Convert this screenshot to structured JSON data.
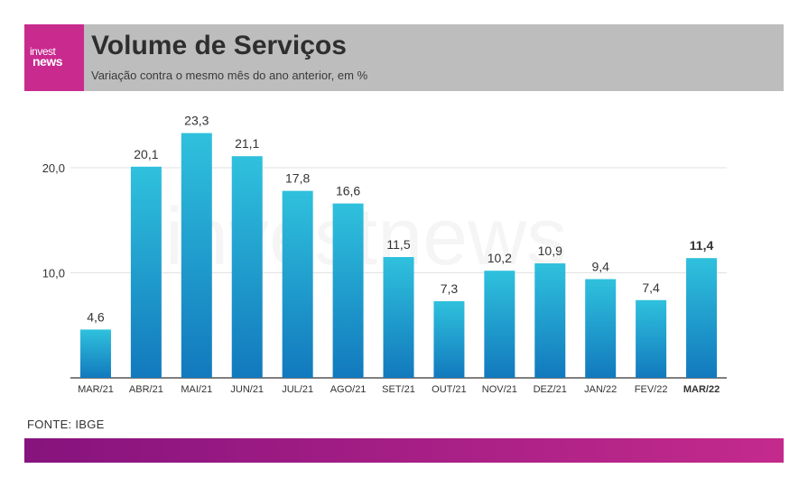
{
  "brand": {
    "logo_top": "invest",
    "logo_bottom": "news",
    "watermark": "investnews"
  },
  "header": {
    "title": "Volume de Serviços",
    "subtitle": "Variação contra o mesmo mês do ano anterior, em %"
  },
  "source": "FONTE: IBGE",
  "colors": {
    "bar_top": "#2fc1dd",
    "bar_bottom": "#1279bd",
    "header_bg": "#bdbdbd",
    "logo_bg": "#c92a8e"
  },
  "chart_data": {
    "type": "bar",
    "title": "Volume de Serviços",
    "subtitle": "Variação contra o mesmo mês do ano anterior, em %",
    "categories": [
      "MAR/21",
      "ABR/21",
      "MAI/21",
      "JUN/21",
      "JUL/21",
      "AGO/21",
      "SET/21",
      "OUT/21",
      "NOV/21",
      "DEZ/21",
      "JAN/22",
      "FEV/22",
      "MAR/22"
    ],
    "values": [
      4.6,
      20.1,
      23.3,
      21.1,
      17.8,
      16.6,
      11.5,
      7.3,
      10.2,
      10.9,
      9.4,
      7.4,
      11.4
    ],
    "value_labels": [
      "4,6",
      "20,1",
      "23,3",
      "21,1",
      "17,8",
      "16,6",
      "11,5",
      "7,3",
      "10,2",
      "10,9",
      "9,4",
      "7,4",
      "11,4"
    ],
    "highlight": "MAR/22",
    "yticks": [
      10,
      20
    ],
    "ytick_labels": [
      "10,0",
      "20,0"
    ],
    "ylim": [
      0,
      25
    ],
    "grid": true,
    "xlabel": "",
    "ylabel": ""
  }
}
